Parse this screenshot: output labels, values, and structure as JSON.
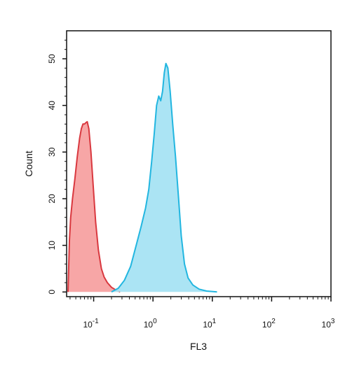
{
  "chart_data": {
    "type": "area",
    "title": "",
    "xlabel": "FL3",
    "ylabel": "Count",
    "x_scale": "log",
    "xlim": [
      0.035,
      1000
    ],
    "ylim": [
      -1,
      56
    ],
    "grid": false,
    "legend": "none",
    "x_ticks": [
      {
        "value": 0.1,
        "base": "10",
        "exp": "-1"
      },
      {
        "value": 1,
        "base": "10",
        "exp": "0"
      },
      {
        "value": 10,
        "base": "10",
        "exp": "1"
      },
      {
        "value": 100,
        "base": "10",
        "exp": "2"
      },
      {
        "value": 1000,
        "base": "10",
        "exp": "3"
      }
    ],
    "y_ticks": [
      {
        "value": 0,
        "label": "0"
      },
      {
        "value": 10,
        "label": "10"
      },
      {
        "value": 20,
        "label": "20"
      },
      {
        "value": 30,
        "label": "30"
      },
      {
        "value": 40,
        "label": "40"
      },
      {
        "value": 50,
        "label": "50"
      }
    ],
    "series": [
      {
        "fill": "#f7a1a1",
        "stroke": "#d9383f",
        "points": [
          [
            0.037,
            0
          ],
          [
            0.039,
            11
          ],
          [
            0.041,
            16
          ],
          [
            0.044,
            20
          ],
          [
            0.048,
            24
          ],
          [
            0.053,
            29
          ],
          [
            0.058,
            33
          ],
          [
            0.062,
            35
          ],
          [
            0.066,
            36
          ],
          [
            0.07,
            36
          ],
          [
            0.074,
            36.3
          ],
          [
            0.078,
            36.5
          ],
          [
            0.083,
            35
          ],
          [
            0.09,
            30
          ],
          [
            0.098,
            23
          ],
          [
            0.108,
            15
          ],
          [
            0.12,
            9
          ],
          [
            0.135,
            5
          ],
          [
            0.15,
            3.2
          ],
          [
            0.17,
            2
          ],
          [
            0.2,
            1
          ],
          [
            0.24,
            0.4
          ],
          [
            0.28,
            0
          ]
        ]
      },
      {
        "fill": "#a6e3f3",
        "stroke": "#22b6e0",
        "points": [
          [
            0.2,
            0
          ],
          [
            0.26,
            0.8
          ],
          [
            0.33,
            2.5
          ],
          [
            0.42,
            5.5
          ],
          [
            0.52,
            10
          ],
          [
            0.63,
            14
          ],
          [
            0.75,
            18
          ],
          [
            0.85,
            22
          ],
          [
            0.95,
            28
          ],
          [
            1.05,
            34
          ],
          [
            1.15,
            40
          ],
          [
            1.25,
            42
          ],
          [
            1.35,
            41
          ],
          [
            1.45,
            43
          ],
          [
            1.55,
            47
          ],
          [
            1.65,
            49
          ],
          [
            1.78,
            48
          ],
          [
            1.95,
            43
          ],
          [
            2.15,
            36
          ],
          [
            2.4,
            29
          ],
          [
            2.7,
            20
          ],
          [
            3.0,
            12
          ],
          [
            3.4,
            6
          ],
          [
            3.9,
            3
          ],
          [
            4.7,
            1.5
          ],
          [
            6.0,
            0.6
          ],
          [
            8.0,
            0.2
          ],
          [
            12.0,
            0
          ]
        ]
      }
    ]
  }
}
